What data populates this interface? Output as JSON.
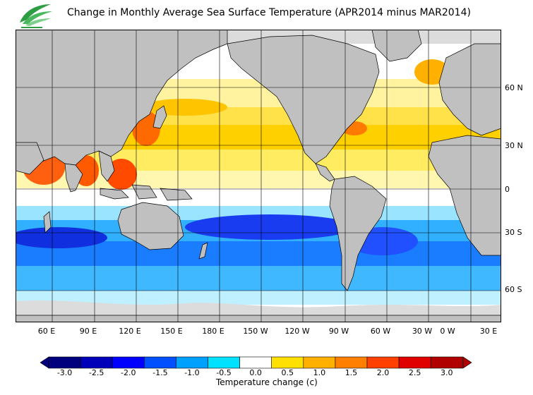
{
  "header": {
    "title": "Change in Monthly Average Sea Surface Temperature (APR2014 minus MAR2014)",
    "logo_icon": "hko-leaf-logo-icon"
  },
  "map": {
    "lat_labels": [
      "60 N",
      "30 N",
      "0",
      "30 S",
      "60 S"
    ],
    "lon_labels": [
      "60 E",
      "90 E",
      "120 E",
      "150 E",
      "180 E",
      "150 W",
      "120 W",
      "90 W",
      "60 W",
      "30 W",
      "0 W",
      "30 E"
    ]
  },
  "legend": {
    "tick_labels": [
      "-3.0",
      "-2.5",
      "-2.0",
      "-1.5",
      "-1.0",
      "-0.5",
      "0.0",
      "0.5",
      "1.0",
      "1.5",
      "2.0",
      "2.5",
      "3.0"
    ],
    "title": "Temperature change  (c)",
    "colors": [
      "#00007f",
      "#0000b8",
      "#0000ff",
      "#0050ff",
      "#00a0ff",
      "#00e0ff",
      "#ffffff",
      "#ffe000",
      "#ffb000",
      "#ff8000",
      "#ff4000",
      "#e00000",
      "#b00000"
    ]
  },
  "colors": {
    "land": "#c0c0c0",
    "no_data": "#dcdcdc",
    "grid": "#000000"
  }
}
